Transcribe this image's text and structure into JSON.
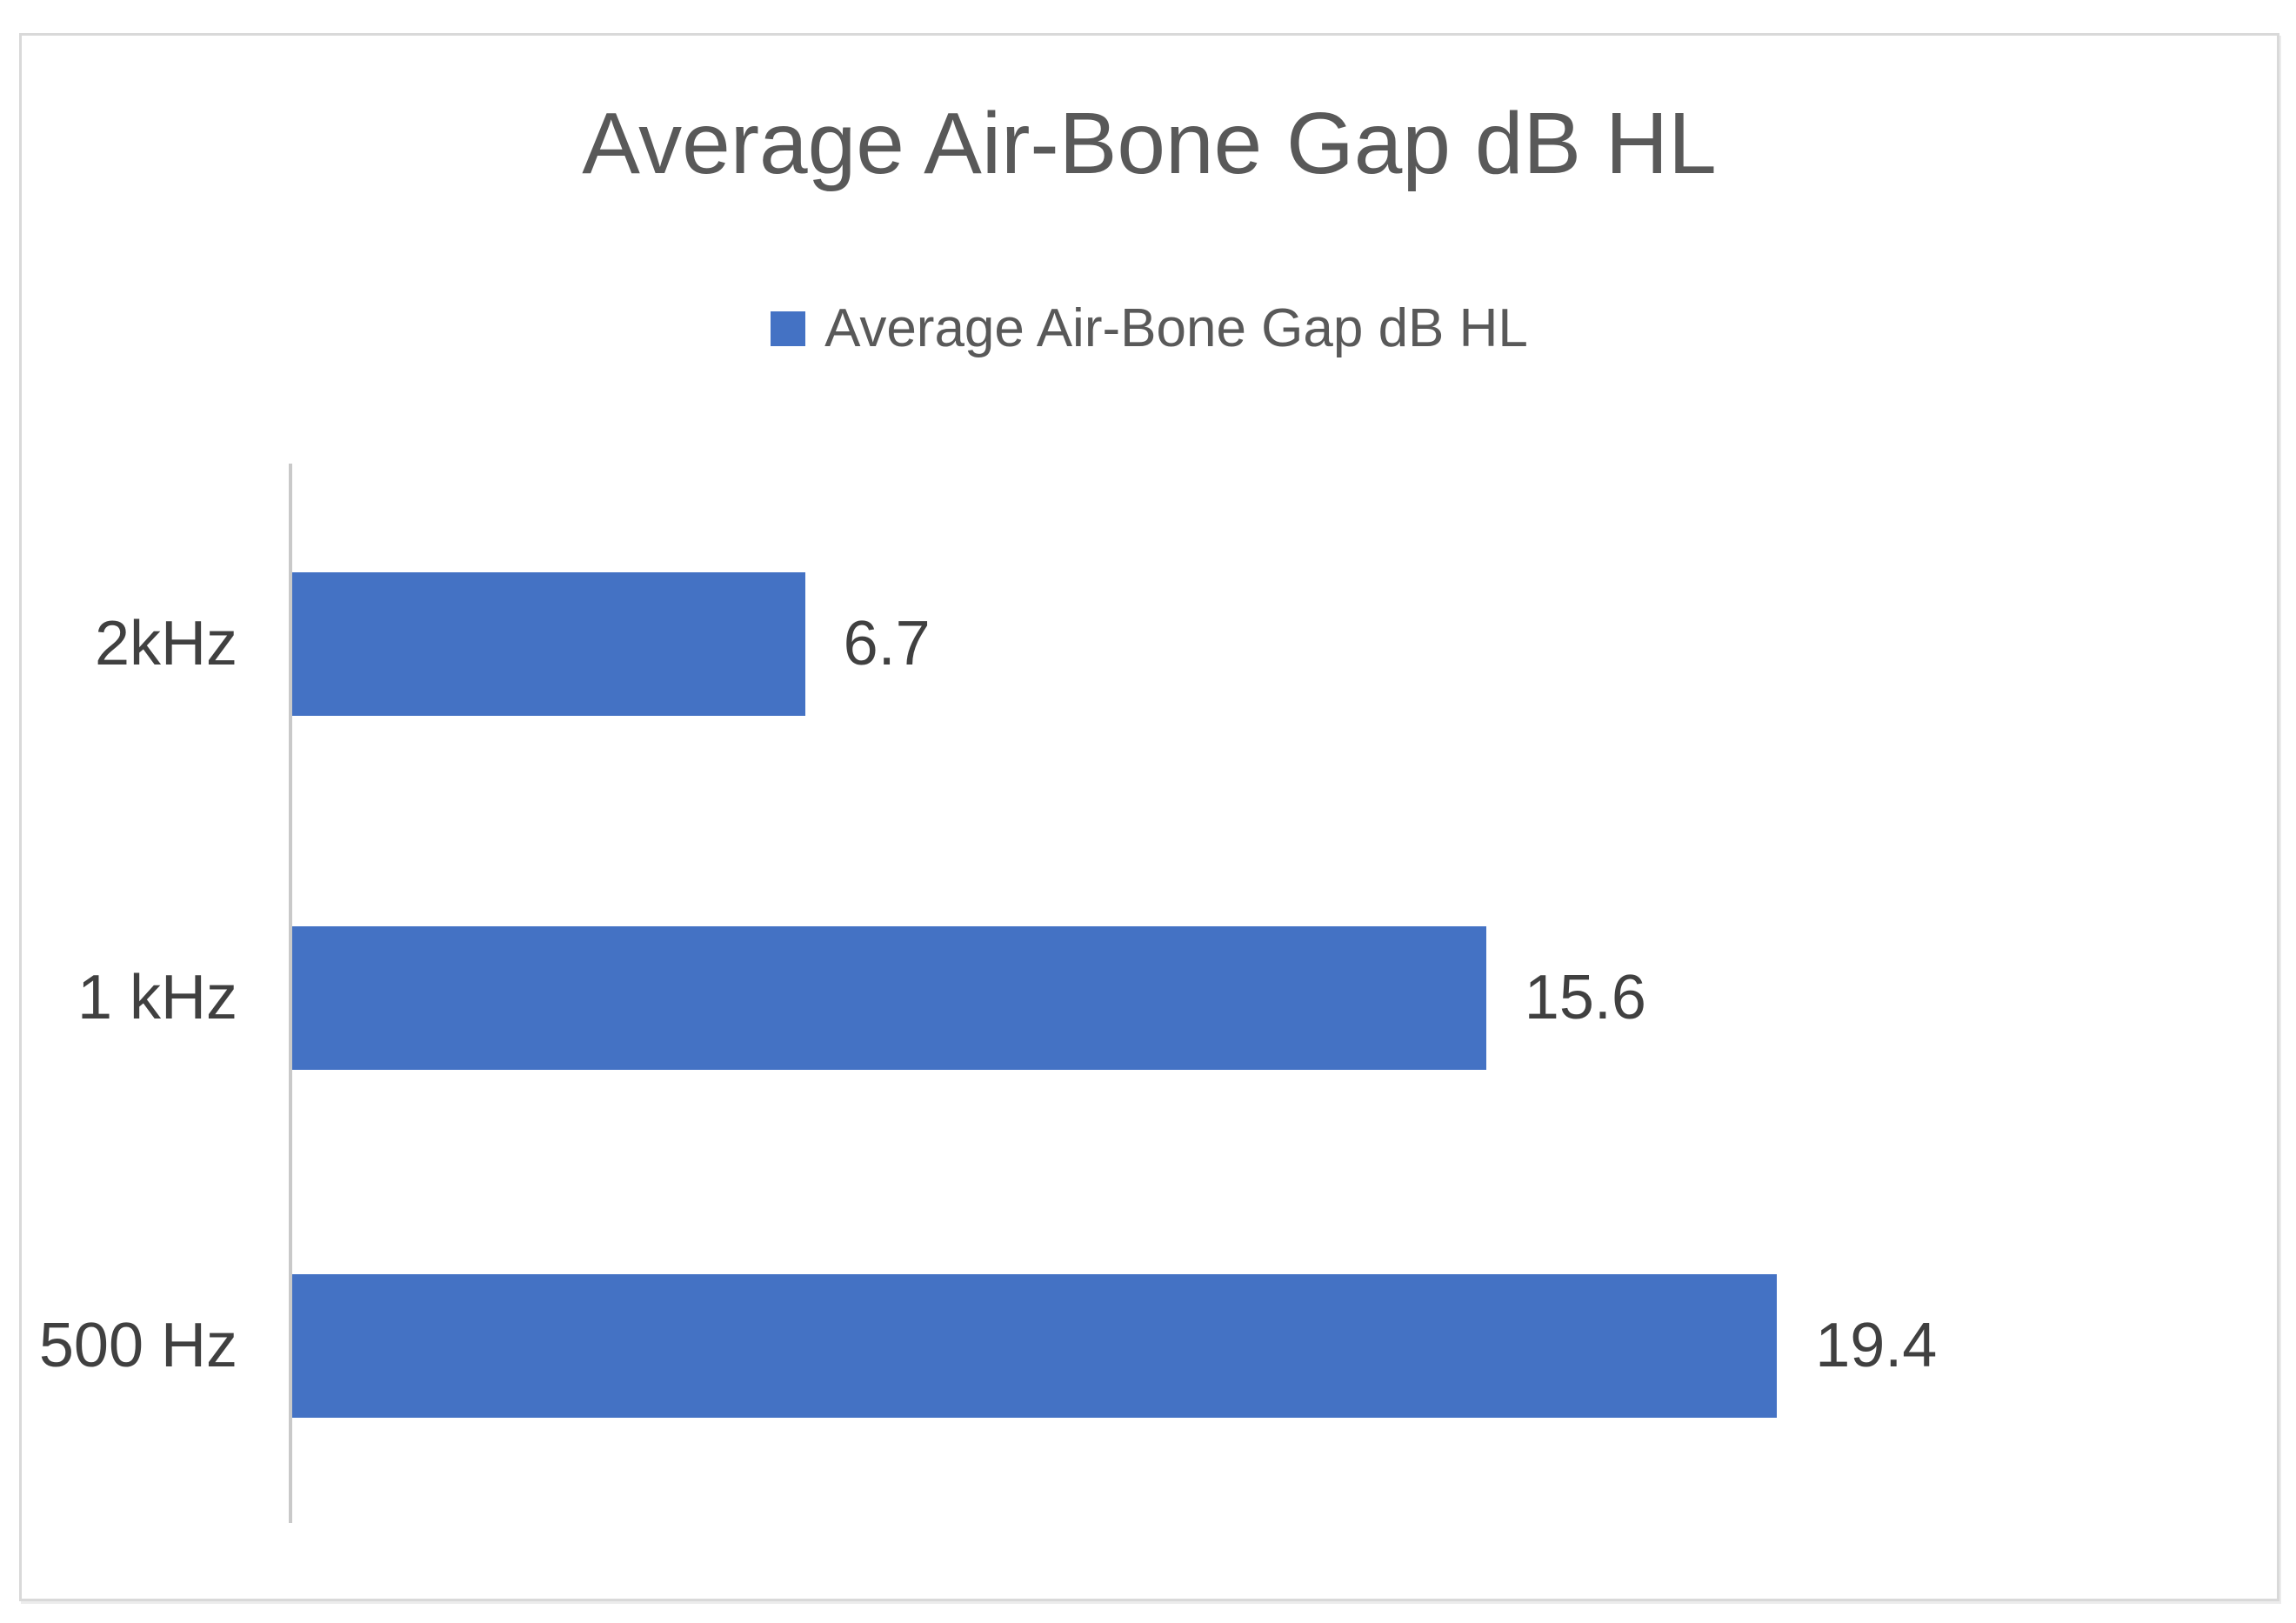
{
  "chart_data": {
    "type": "bar",
    "orientation": "horizontal",
    "title": "Average Air-Bone Gap dB HL",
    "legend": {
      "label": "Average Air-Bone Gap dB HL",
      "position": "top-center",
      "marker_color": "#4472C4"
    },
    "categories": [
      "2kHz",
      "1 kHz",
      "500 Hz"
    ],
    "values": [
      6.7,
      15.6,
      19.4
    ],
    "data_labels": [
      "6.7",
      "15.6",
      "19.4"
    ],
    "series": [
      {
        "name": "Average Air-Bone Gap dB HL",
        "values": [
          6.7,
          15.6,
          19.4
        ]
      }
    ],
    "xlabel": "",
    "ylabel": "",
    "xlim": [
      0,
      25
    ],
    "grid": false,
    "x_axis_tick_labels_visible": false,
    "colors": {
      "bar": "#4472C4",
      "axis_line": "#C9C9C9",
      "title_text": "#595959",
      "legend_text": "#595959",
      "label_text": "#404040",
      "frame_border": "#D9D9D9",
      "background": "#FFFFFF"
    }
  }
}
